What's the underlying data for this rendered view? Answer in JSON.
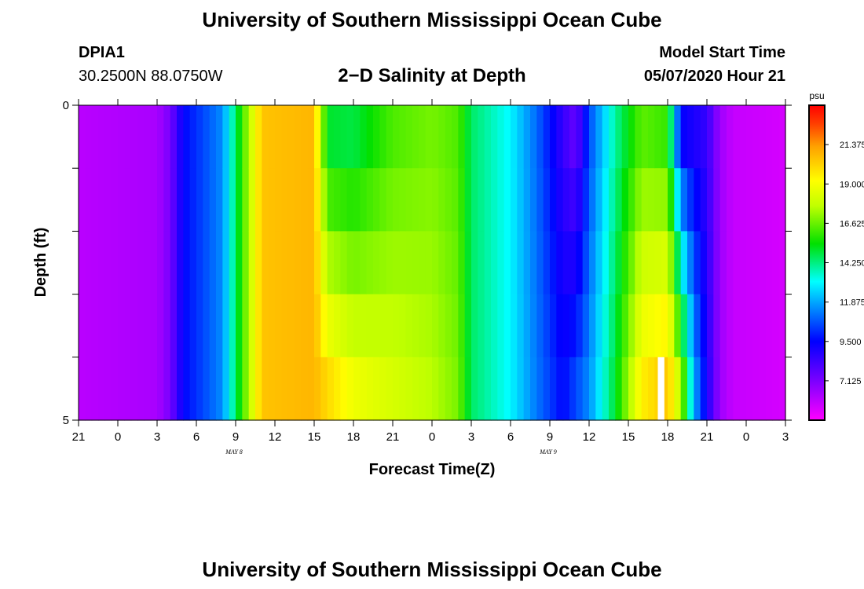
{
  "header": {
    "title": "University of Southern Mississippi Ocean Cube",
    "station": "DPIA1",
    "coords": "30.2500N 88.0750W",
    "plot_title": "2−D Salinity at Depth",
    "model_start_label": "Model Start Time",
    "model_start_value": "05/07/2020 Hour 21"
  },
  "footer": {
    "title": "University of Southern Mississippi Ocean Cube"
  },
  "chart_data": {
    "type": "heatmap",
    "title": "2-D Salinity at Depth",
    "xlabel": "Forecast Time(Z)",
    "ylabel": "Depth (ft)",
    "x_ticks": [
      "21",
      "0",
      "3",
      "6",
      "9",
      "12",
      "15",
      "18",
      "21",
      "0",
      "3",
      "6",
      "9",
      "12",
      "15",
      "18",
      "21",
      "0",
      "3"
    ],
    "x_hours": [
      0,
      3,
      6,
      9,
      12,
      15,
      18,
      21,
      24,
      27,
      30,
      33,
      36,
      39,
      42,
      45,
      48,
      51,
      54
    ],
    "day_labels": [
      {
        "text": "MAY 8",
        "hour": 15
      },
      {
        "text": "MAY 9",
        "hour": 39
      }
    ],
    "y_ticks": [
      "0",
      "5"
    ],
    "ylim": [
      0,
      5
    ],
    "depth_rows": 5,
    "colorbar": {
      "unit": "psu",
      "min": 4.75,
      "max": 23.75,
      "tick_values": [
        21.375,
        19.0,
        16.625,
        14.25,
        11.875,
        9.5,
        7.125
      ],
      "tick_labels": [
        "21.375",
        "19.000",
        "16.625",
        "14.250",
        "11.875",
        "9.500",
        "7.125"
      ]
    },
    "salinity_by_hour": [
      {
        "h": 0,
        "surface": 6.0,
        "bottom": 6.0
      },
      {
        "h": 6,
        "surface": 6.3,
        "bottom": 6.3
      },
      {
        "h": 7,
        "surface": 7.2,
        "bottom": 7.2
      },
      {
        "h": 8,
        "surface": 9.5,
        "bottom": 9.5
      },
      {
        "h": 11,
        "surface": 11.5,
        "bottom": 11.5
      },
      {
        "h": 12,
        "surface": 14.5,
        "bottom": 14.5
      },
      {
        "h": 13,
        "surface": 17.5,
        "bottom": 17.5
      },
      {
        "h": 14,
        "surface": 20.5,
        "bottom": 20.5
      },
      {
        "h": 18,
        "surface": 20.8,
        "bottom": 20.8
      },
      {
        "h": 19,
        "surface": 15.0,
        "bottom": 20.0
      },
      {
        "h": 21,
        "surface": 14.8,
        "bottom": 18.8
      },
      {
        "h": 24,
        "surface": 16.3,
        "bottom": 18.2
      },
      {
        "h": 27,
        "surface": 16.8,
        "bottom": 17.6
      },
      {
        "h": 29,
        "surface": 16.3,
        "bottom": 16.8
      },
      {
        "h": 30,
        "surface": 14.5,
        "bottom": 14.5
      },
      {
        "h": 33,
        "surface": 13.0,
        "bottom": 13.0
      },
      {
        "h": 35,
        "surface": 11.0,
        "bottom": 11.2
      },
      {
        "h": 37,
        "surface": 8.5,
        "bottom": 9.5
      },
      {
        "h": 38,
        "surface": 7.5,
        "bottom": 10.5
      },
      {
        "h": 39,
        "surface": 10.5,
        "bottom": 11.5
      },
      {
        "h": 41,
        "surface": 14.0,
        "bottom": 15.0
      },
      {
        "h": 43,
        "surface": 16.5,
        "bottom": 19.5
      },
      {
        "h": 45,
        "surface": 16.0,
        "bottom": 20.5
      },
      {
        "h": 46,
        "surface": 9.5,
        "bottom": 17.5
      },
      {
        "h": 47,
        "surface": 9.0,
        "bottom": 12.0
      },
      {
        "h": 48,
        "surface": 8.5,
        "bottom": 9.0
      },
      {
        "h": 49,
        "surface": 6.5,
        "bottom": 6.5
      },
      {
        "h": 50,
        "surface": 5.8,
        "bottom": 5.8
      },
      {
        "h": 54,
        "surface": 5.5,
        "bottom": 5.5
      }
    ],
    "missing_cell": {
      "hour": 44.5,
      "depth_row": 5
    }
  }
}
